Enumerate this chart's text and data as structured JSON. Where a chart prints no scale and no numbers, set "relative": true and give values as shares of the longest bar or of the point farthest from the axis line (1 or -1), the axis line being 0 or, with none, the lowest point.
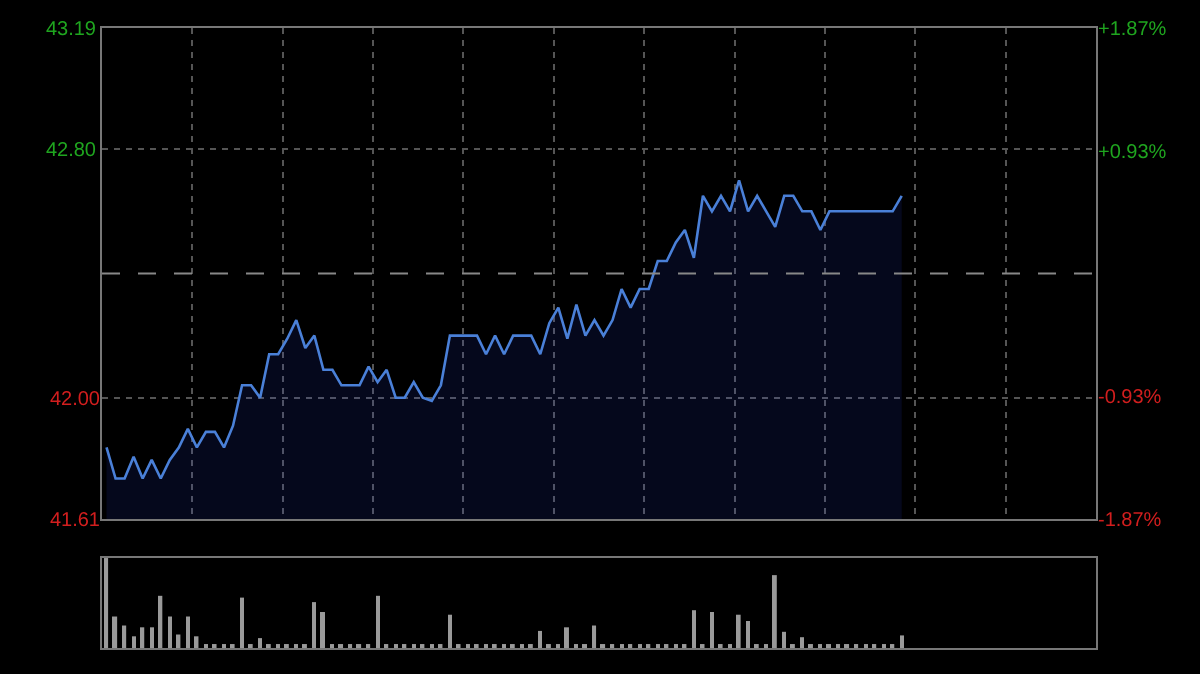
{
  "chart_data": [
    {
      "type": "area",
      "categories": [
        null,
        null,
        null,
        null,
        null,
        null,
        null,
        null,
        null,
        null,
        null,
        null,
        null,
        null,
        null,
        null,
        null,
        null,
        null,
        null,
        null,
        null,
        null,
        null,
        null,
        null,
        null,
        null,
        null,
        null,
        null,
        null,
        null,
        null,
        null,
        null,
        null,
        null,
        null,
        null,
        null,
        null,
        null,
        null,
        null,
        null,
        null,
        null,
        null,
        null,
        null,
        null,
        null,
        null,
        null,
        null,
        null,
        null,
        null,
        null,
        null,
        null,
        null,
        null,
        null,
        null,
        null,
        null,
        null,
        null,
        null,
        null,
        null,
        null,
        null,
        null,
        null,
        null,
        null,
        null,
        null,
        null,
        null,
        null,
        null,
        null,
        null,
        null,
        null,
        null,
        null,
        null,
        null,
        null,
        null,
        null,
        null,
        null,
        null,
        null,
        null,
        null,
        null,
        null,
        null,
        null,
        null,
        null,
        null,
        null
      ],
      "series": [
        {
          "color": "#4a80d8",
          "values": [
            41.84,
            41.74,
            41.74,
            41.81,
            41.74,
            41.8,
            41.74,
            41.8,
            41.84,
            41.9,
            41.84,
            41.89,
            41.89,
            41.84,
            41.91,
            42.04,
            42.04,
            42.0,
            42.14,
            42.14,
            42.19,
            42.25,
            42.16,
            42.2,
            42.09,
            42.09,
            42.04,
            42.04,
            42.04,
            42.1,
            42.05,
            42.09,
            42.0,
            42.0,
            42.05,
            42.0,
            41.99,
            42.04,
            42.2,
            42.2,
            42.2,
            42.2,
            42.14,
            42.2,
            42.14,
            42.2,
            42.2,
            42.2,
            42.14,
            42.24,
            42.29,
            42.19,
            42.3,
            42.2,
            42.25,
            42.2,
            42.25,
            42.35,
            42.29,
            42.35,
            42.35,
            42.44,
            42.44,
            42.5,
            42.54,
            42.45,
            42.65,
            42.6,
            42.65,
            42.6,
            42.7,
            42.6,
            42.65,
            42.6,
            42.55,
            42.65,
            42.65,
            42.6,
            42.6,
            42.54,
            42.6,
            42.6,
            42.6,
            42.6,
            42.6,
            42.6,
            42.6,
            42.6,
            42.65,
            null,
            null,
            null,
            null,
            null,
            null,
            null,
            null,
            null,
            null,
            null,
            null,
            null,
            null,
            null,
            null,
            null,
            null,
            null,
            null,
            null
          ]
        }
      ],
      "ylim": [
        41.61,
        43.19
      ],
      "yticks": [
        41.61,
        {
          "value": 42.0,
          "label": "42.00"
        },
        {
          "value": 42.8,
          "label": "42.80"
        },
        43.19
      ],
      "y2lim": [
        -1.87,
        1.87
      ],
      "y2ticks": [
        {
          "value": -1.87,
          "label": "-1.87%"
        },
        {
          "value": -0.93,
          "label": "-0.93%"
        },
        {
          "value": 0.93,
          "label": "+0.93%"
        },
        {
          "value": 1.87,
          "label": "+1.87%"
        }
      ],
      "ref_lines": [
        {
          "axis": "y",
          "value": 42.4
        }
      ],
      "grid": true
    },
    {
      "type": "bar",
      "relative": true,
      "categories": [
        null,
        null,
        null,
        null,
        null,
        null,
        null,
        null,
        null,
        null,
        null,
        null,
        null,
        null,
        null,
        null,
        null,
        null,
        null,
        null,
        null,
        null,
        null,
        null,
        null,
        null,
        null,
        null,
        null,
        null,
        null,
        null,
        null,
        null,
        null,
        null,
        null,
        null,
        null,
        null,
        null,
        null,
        null,
        null,
        null,
        null,
        null,
        null,
        null,
        null,
        null,
        null,
        null,
        null,
        null,
        null,
        null,
        null,
        null,
        null,
        null,
        null,
        null,
        null,
        null,
        null,
        null,
        null,
        null,
        null,
        null,
        null,
        null,
        null,
        null,
        null,
        null,
        null,
        null,
        null,
        null,
        null,
        null,
        null,
        null,
        null,
        null,
        null,
        null,
        null,
        null,
        null,
        null,
        null,
        null,
        null,
        null,
        null,
        null,
        null,
        null,
        null,
        null,
        null,
        null,
        null,
        null,
        null,
        null,
        null
      ],
      "series": [
        {
          "color": "#9a9a9a",
          "values": [
            1.0,
            0.35,
            0.25,
            0.13,
            0.23,
            0.23,
            0.58,
            0.35,
            0.15,
            0.35,
            0.13,
            0.04,
            0.04,
            0.04,
            0.04,
            0.56,
            0.04,
            0.11,
            0.04,
            0.04,
            0.04,
            0.04,
            0.04,
            0.51,
            0.4,
            0.04,
            0.04,
            0.04,
            0.04,
            0.04,
            0.58,
            0.04,
            0.04,
            0.04,
            0.04,
            0.04,
            0.04,
            0.04,
            0.37,
            0.04,
            0.04,
            0.04,
            0.04,
            0.04,
            0.04,
            0.04,
            0.04,
            0.04,
            0.19,
            0.04,
            0.04,
            0.23,
            0.04,
            0.04,
            0.25,
            0.04,
            0.04,
            0.04,
            0.04,
            0.04,
            0.04,
            0.04,
            0.04,
            0.04,
            0.04,
            0.42,
            0.04,
            0.4,
            0.04,
            0.04,
            0.37,
            0.3,
            0.04,
            0.04,
            0.81,
            0.18,
            0.04,
            0.12,
            0.04,
            0.04,
            0.04,
            0.04,
            0.04,
            0.04,
            0.04,
            0.04,
            0.04,
            0.04,
            0.14,
            null,
            null,
            null,
            null,
            null,
            null,
            null,
            null,
            null,
            null,
            null,
            null,
            null,
            null,
            null,
            null,
            null,
            null,
            null,
            null,
            null
          ]
        }
      ]
    }
  ]
}
